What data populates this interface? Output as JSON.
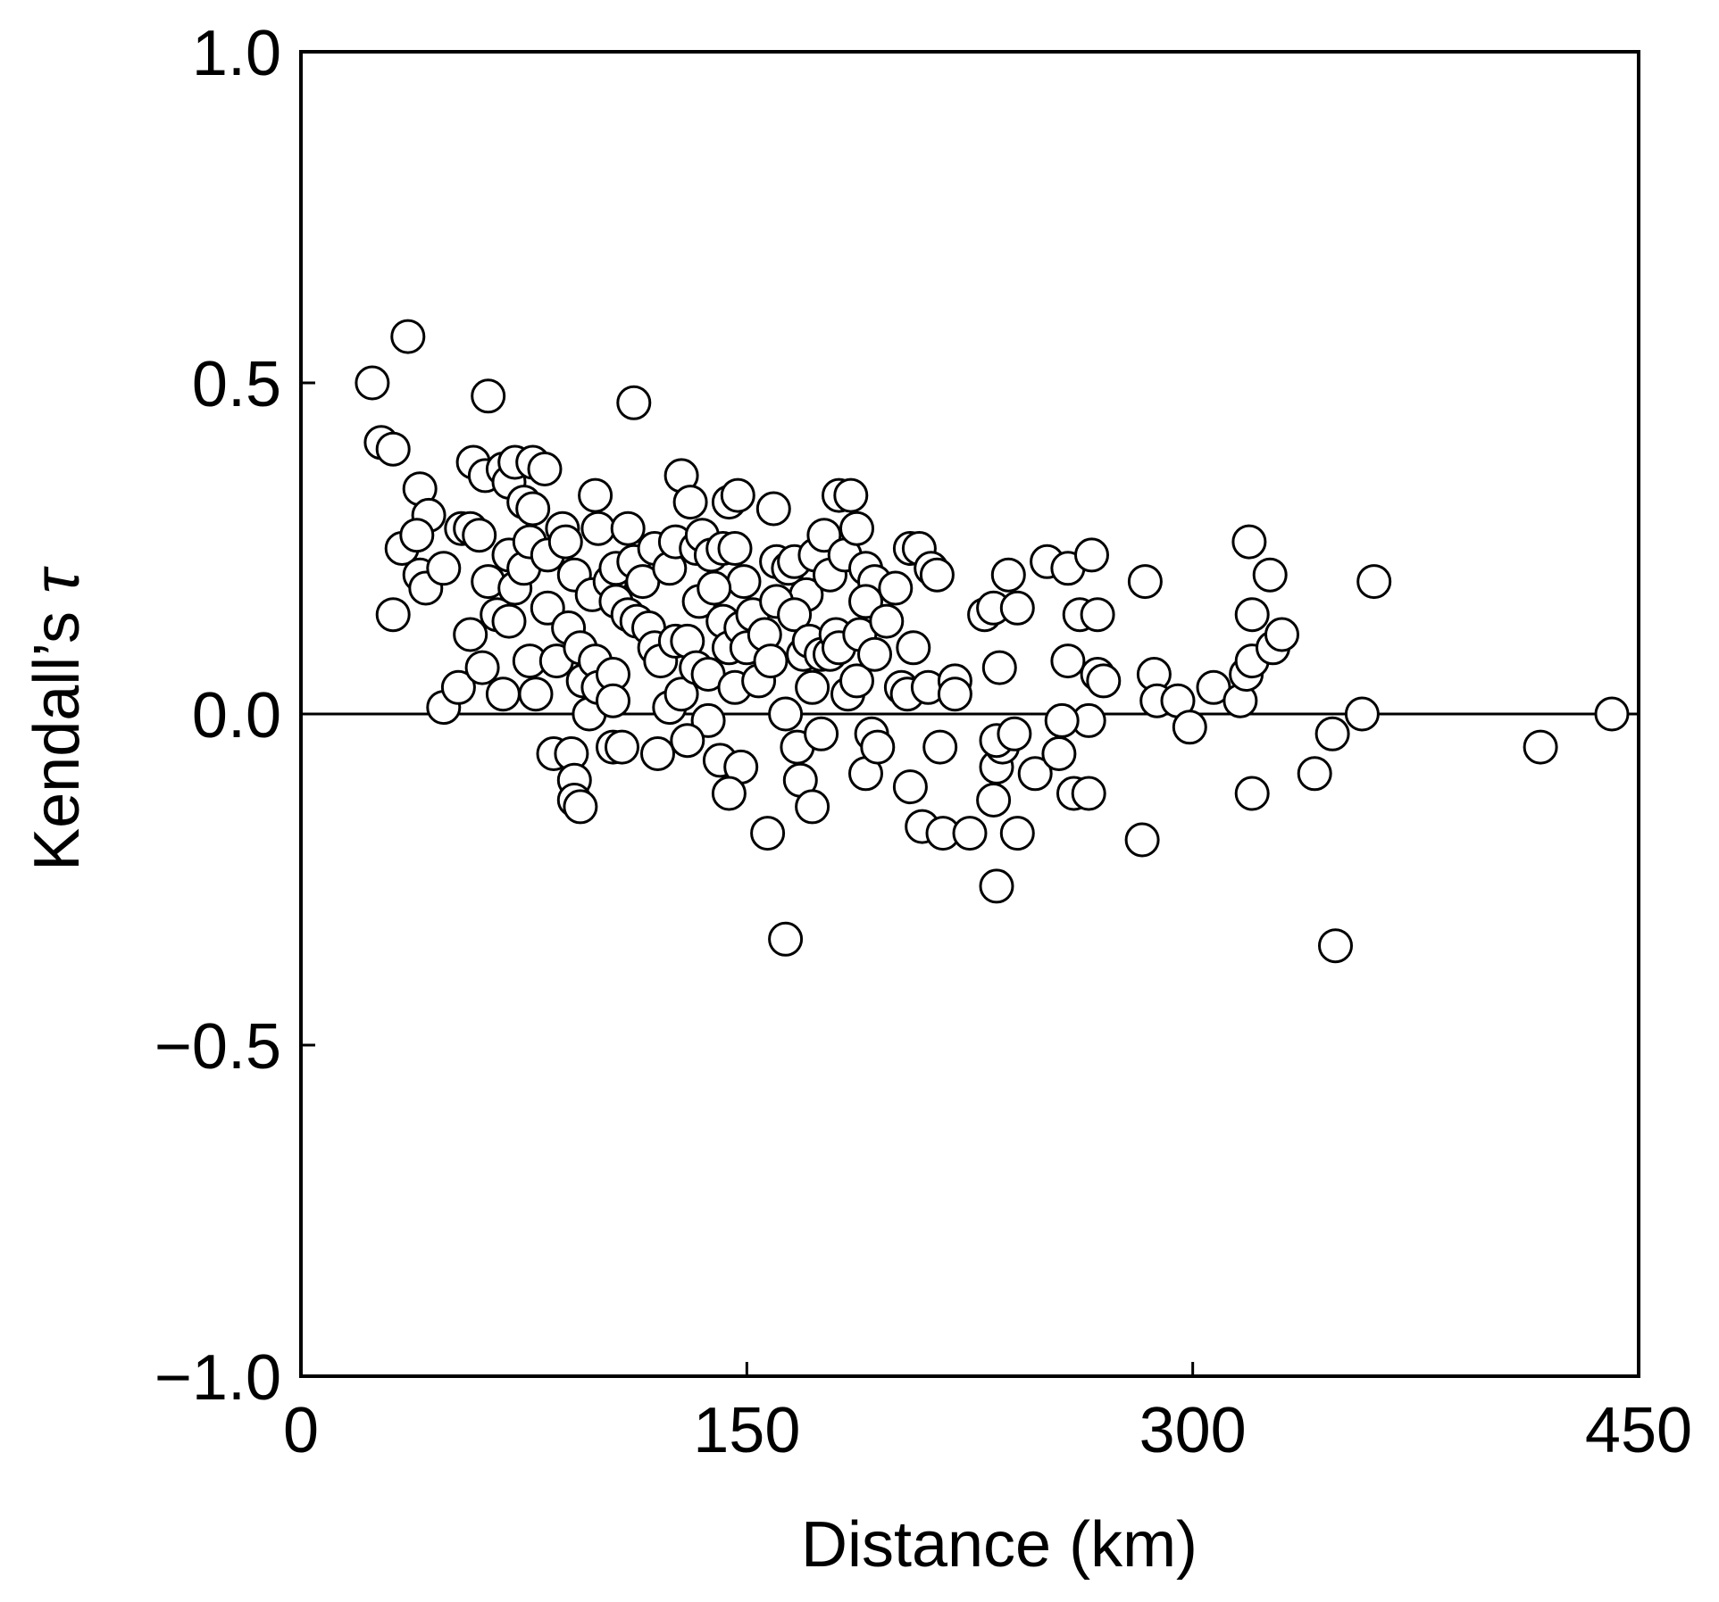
{
  "chart_data": {
    "type": "scatter",
    "title": "",
    "xlabel": "Distance (km)",
    "ylabel_text": "Kendall’s ",
    "ylabel_symbol": "τ",
    "xlim": [
      0,
      450
    ],
    "ylim": [
      -1.0,
      1.0
    ],
    "xticks": [
      0,
      150,
      300,
      450
    ],
    "xtick_labels": [
      "0",
      "150",
      "300",
      "450"
    ],
    "yticks": [
      -1.0,
      -0.5,
      0.0,
      0.5,
      1.0
    ],
    "ytick_labels": [
      "−1.0",
      "−0.5",
      "0.0",
      "0.5",
      "1.0"
    ],
    "reference_line_y": 0.0,
    "grid": false,
    "marker": {
      "shape": "circle",
      "fill": "#ffffff",
      "edge": "#000000"
    },
    "points": [
      [
        24,
        0.5
      ],
      [
        36,
        0.57
      ],
      [
        27,
        0.41
      ],
      [
        31,
        0.4
      ],
      [
        63,
        0.48
      ],
      [
        112,
        0.47
      ],
      [
        40,
        0.34
      ],
      [
        58,
        0.38
      ],
      [
        62,
        0.36
      ],
      [
        68,
        0.37
      ],
      [
        70,
        0.35
      ],
      [
        72,
        0.38
      ],
      [
        75,
        0.32
      ],
      [
        78,
        0.38
      ],
      [
        82,
        0.37
      ],
      [
        78,
        0.31
      ],
      [
        43,
        0.3
      ],
      [
        34,
        0.25
      ],
      [
        39,
        0.27
      ],
      [
        40,
        0.21
      ],
      [
        42,
        0.19
      ],
      [
        48,
        0.22
      ],
      [
        54,
        0.28
      ],
      [
        57,
        0.28
      ],
      [
        60,
        0.27
      ],
      [
        63,
        0.2
      ],
      [
        66,
        0.15
      ],
      [
        70,
        0.24
      ],
      [
        72,
        0.19
      ],
      [
        75,
        0.22
      ],
      [
        77,
        0.26
      ],
      [
        83,
        0.24
      ],
      [
        88,
        0.28
      ],
      [
        89,
        0.26
      ],
      [
        92,
        0.21
      ],
      [
        98,
        0.18
      ],
      [
        99,
        0.33
      ],
      [
        100,
        0.28
      ],
      [
        104,
        0.2
      ],
      [
        106,
        0.22
      ],
      [
        110,
        0.28
      ],
      [
        112,
        0.23
      ],
      [
        115,
        0.2
      ],
      [
        119,
        0.25
      ],
      [
        124,
        0.22
      ],
      [
        126,
        0.26
      ],
      [
        128,
        0.36
      ],
      [
        131,
        0.32
      ],
      [
        133,
        0.25
      ],
      [
        135,
        0.27
      ],
      [
        138,
        0.24
      ],
      [
        142,
        0.25
      ],
      [
        144,
        0.32
      ],
      [
        146,
        0.25
      ],
      [
        147,
        0.33
      ],
      [
        149,
        0.2
      ],
      [
        159,
        0.31
      ],
      [
        160,
        0.23
      ],
      [
        164,
        0.22
      ],
      [
        166,
        0.23
      ],
      [
        170,
        0.18
      ],
      [
        173,
        0.24
      ],
      [
        176,
        0.27
      ],
      [
        178,
        0.21
      ],
      [
        181,
        0.33
      ],
      [
        183,
        0.24
      ],
      [
        185,
        0.33
      ],
      [
        187,
        0.28
      ],
      [
        190,
        0.22
      ],
      [
        193,
        0.2
      ],
      [
        200,
        0.19
      ],
      [
        205,
        0.25
      ],
      [
        208,
        0.25
      ],
      [
        212,
        0.22
      ],
      [
        214,
        0.21
      ],
      [
        31,
        0.15
      ],
      [
        48,
        0.01
      ],
      [
        53,
        0.04
      ],
      [
        57,
        0.12
      ],
      [
        61,
        0.07
      ],
      [
        68,
        0.03
      ],
      [
        70,
        0.14
      ],
      [
        77,
        0.08
      ],
      [
        79,
        0.03
      ],
      [
        83,
        0.16
      ],
      [
        86,
        0.08
      ],
      [
        90,
        0.13
      ],
      [
        94,
        0.1
      ],
      [
        95,
        0.05
      ],
      [
        97,
        0.0
      ],
      [
        99,
        0.08
      ],
      [
        100,
        0.04
      ],
      [
        105,
        0.06
      ],
      [
        105,
        0.02
      ],
      [
        106,
        0.17
      ],
      [
        110,
        0.15
      ],
      [
        113,
        0.14
      ],
      [
        117,
        0.13
      ],
      [
        119,
        0.1
      ],
      [
        121,
        0.08
      ],
      [
        124,
        0.01
      ],
      [
        126,
        0.11
      ],
      [
        128,
        0.03
      ],
      [
        130,
        0.11
      ],
      [
        133,
        0.07
      ],
      [
        134,
        0.17
      ],
      [
        137,
        0.06
      ],
      [
        137,
        -0.01
      ],
      [
        139,
        0.19
      ],
      [
        142,
        0.14
      ],
      [
        144,
        0.1
      ],
      [
        146,
        0.04
      ],
      [
        148,
        0.13
      ],
      [
        150,
        0.1
      ],
      [
        152,
        0.15
      ],
      [
        154,
        0.05
      ],
      [
        156,
        0.12
      ],
      [
        158,
        0.08
      ],
      [
        160,
        0.17
      ],
      [
        163,
        0.0
      ],
      [
        166,
        0.15
      ],
      [
        169,
        0.09
      ],
      [
        171,
        0.11
      ],
      [
        172,
        0.04
      ],
      [
        175,
        0.09
      ],
      [
        178,
        0.09
      ],
      [
        180,
        0.12
      ],
      [
        181,
        0.1
      ],
      [
        184,
        0.03
      ],
      [
        187,
        0.05
      ],
      [
        188,
        0.12
      ],
      [
        190,
        0.17
      ],
      [
        193,
        0.09
      ],
      [
        197,
        0.14
      ],
      [
        202,
        0.04
      ],
      [
        204,
        0.03
      ],
      [
        206,
        0.1
      ],
      [
        211,
        0.04
      ],
      [
        220,
        0.05
      ],
      [
        220,
        0.03
      ],
      [
        230,
        0.15
      ],
      [
        233,
        0.16
      ],
      [
        235,
        0.07
      ],
      [
        238,
        0.21
      ],
      [
        241,
        0.16
      ],
      [
        251,
        0.23
      ],
      [
        258,
        0.22
      ],
      [
        262,
        0.15
      ],
      [
        266,
        0.24
      ],
      [
        268,
        0.15
      ],
      [
        268,
        0.06
      ],
      [
        270,
        0.05
      ],
      [
        265,
        -0.01
      ],
      [
        258,
        0.08
      ],
      [
        256,
        -0.01
      ],
      [
        284,
        0.2
      ],
      [
        287,
        0.06
      ],
      [
        288,
        0.02
      ],
      [
        295,
        0.02
      ],
      [
        299,
        -0.02
      ],
      [
        307,
        0.04
      ],
      [
        316,
        0.02
      ],
      [
        318,
        0.06
      ],
      [
        320,
        0.08
      ],
      [
        319,
        0.26
      ],
      [
        320,
        0.15
      ],
      [
        326,
        0.21
      ],
      [
        327,
        0.1
      ],
      [
        330,
        0.12
      ],
      [
        361,
        0.2
      ],
      [
        357,
        0.0
      ],
      [
        341,
        -0.09
      ],
      [
        347,
        -0.03
      ],
      [
        85,
        -0.06
      ],
      [
        91,
        -0.06
      ],
      [
        92,
        -0.1
      ],
      [
        92,
        -0.13
      ],
      [
        94,
        -0.14
      ],
      [
        105,
        -0.05
      ],
      [
        108,
        -0.05
      ],
      [
        120,
        -0.06
      ],
      [
        130,
        -0.04
      ],
      [
        141,
        -0.07
      ],
      [
        148,
        -0.08
      ],
      [
        144,
        -0.12
      ],
      [
        157,
        -0.18
      ],
      [
        163,
        -0.34
      ],
      [
        167,
        -0.05
      ],
      [
        168,
        -0.1
      ],
      [
        172,
        -0.14
      ],
      [
        175,
        -0.03
      ],
      [
        190,
        -0.09
      ],
      [
        192,
        -0.03
      ],
      [
        194,
        -0.05
      ],
      [
        205,
        -0.11
      ],
      [
        209,
        -0.17
      ],
      [
        216,
        -0.18
      ],
      [
        215,
        -0.05
      ],
      [
        225,
        -0.18
      ],
      [
        233,
        -0.13
      ],
      [
        234,
        -0.26
      ],
      [
        234,
        -0.08
      ],
      [
        236,
        -0.05
      ],
      [
        234,
        -0.04
      ],
      [
        240,
        -0.03
      ],
      [
        241,
        -0.18
      ],
      [
        247,
        -0.09
      ],
      [
        255,
        -0.06
      ],
      [
        260,
        -0.12
      ],
      [
        265,
        -0.12
      ],
      [
        283,
        -0.19
      ],
      [
        320,
        -0.12
      ],
      [
        348,
        -0.35
      ],
      [
        417,
        -0.05
      ],
      [
        441,
        0.0
      ]
    ]
  }
}
